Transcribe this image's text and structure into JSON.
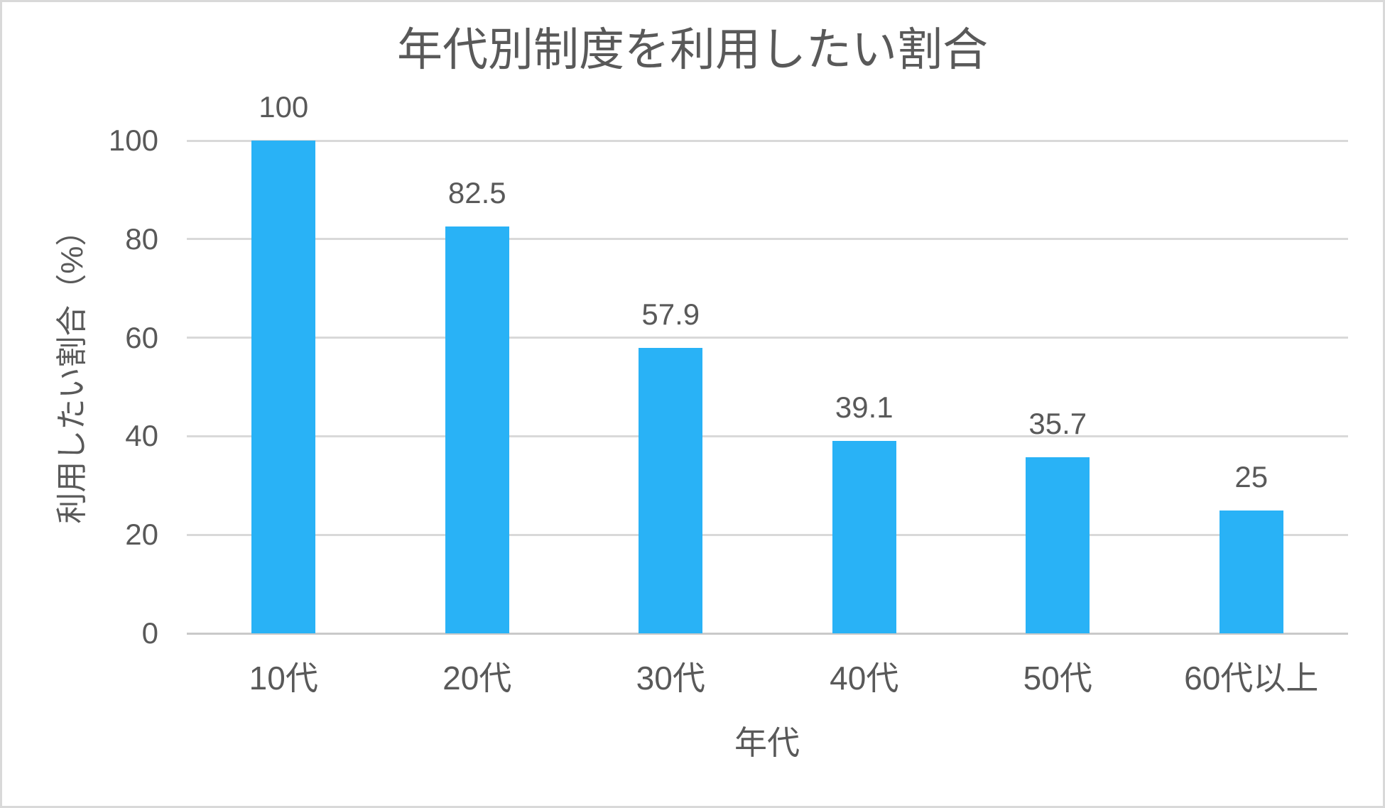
{
  "frame": {
    "border_color": "#D9D9D9",
    "background": "#FFFFFF"
  },
  "chart_data": {
    "type": "bar",
    "title": "年代別制度を利用したい割合",
    "xlabel": "年代",
    "ylabel": "利用したい割合（%）",
    "categories": [
      "10代",
      "20代",
      "30代",
      "40代",
      "50代",
      "60代以上"
    ],
    "values": [
      100,
      82.5,
      57.9,
      39.1,
      35.7,
      25
    ],
    "data_labels": [
      "100",
      "82.5",
      "57.9",
      "39.1",
      "35.7",
      "25"
    ],
    "yticks": [
      0,
      20,
      40,
      60,
      80,
      100
    ],
    "ylim": [
      0,
      100
    ],
    "grid": "horizontal-gridlines",
    "legend": "none",
    "bar_color": "#29B2F6",
    "text_color": "#595959",
    "gridline_color": "#D9D9D9",
    "axis_line_color": "#C9C9C9"
  }
}
